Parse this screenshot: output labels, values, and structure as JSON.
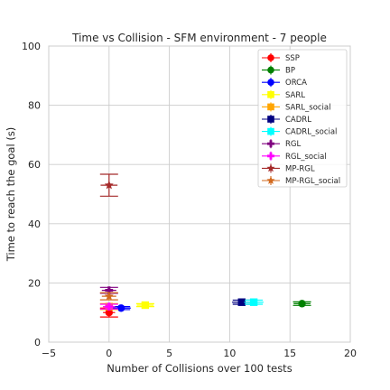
{
  "chart_data": {
    "type": "scatter",
    "title": "Time vs Collision - SFM environment - 7 people",
    "xlabel": "Number of Collisions over 100 tests",
    "ylabel": "Time to reach the goal (s)",
    "xlim": [
      -5,
      20
    ],
    "ylim": [
      0,
      100
    ],
    "xticks": [
      -5,
      0,
      5,
      10,
      15,
      20
    ],
    "yticks": [
      0,
      20,
      40,
      60,
      80,
      100
    ],
    "xtick_labels": [
      "−5",
      "0",
      "5",
      "10",
      "15",
      "20"
    ],
    "ytick_labels": [
      "0",
      "20",
      "40",
      "60",
      "80",
      "100"
    ],
    "grid": true,
    "legend_position": "top-right",
    "series": [
      {
        "name": "SSP",
        "marker": "circle",
        "color": "#ff0000",
        "x": 0,
        "y": 10,
        "xerr": 0.5,
        "yerr": 1.5
      },
      {
        "name": "BP",
        "marker": "circle",
        "color": "#008000",
        "x": 16,
        "y": 13,
        "xerr": 0.7,
        "yerr": 0.6
      },
      {
        "name": "ORCA",
        "marker": "circle",
        "color": "#0000ff",
        "x": 1,
        "y": 11.5,
        "xerr": 0.8,
        "yerr": 0.5
      },
      {
        "name": "SARL",
        "marker": "square",
        "color": "#ffff00",
        "x": 3,
        "y": 12.5,
        "xerr": 0.7,
        "yerr": 0.5
      },
      {
        "name": "SARL_social",
        "marker": "square",
        "color": "#ffa500",
        "x": 0,
        "y": 12,
        "xerr": 0.5,
        "yerr": 1.0
      },
      {
        "name": "CADRL",
        "marker": "square",
        "color": "#000080",
        "x": 11,
        "y": 13.5,
        "xerr": 0.8,
        "yerr": 0.7
      },
      {
        "name": "CADRL_social",
        "marker": "square",
        "color": "#00ffff",
        "x": 12,
        "y": 13.5,
        "xerr": 0.8,
        "yerr": 0.7
      },
      {
        "name": "RGL",
        "marker": "plus",
        "color": "#800080",
        "x": 0,
        "y": 17.5,
        "xerr": 0.6,
        "yerr": 1.0
      },
      {
        "name": "RGL_social",
        "marker": "plus",
        "color": "#ff00ff",
        "x": 0,
        "y": 12,
        "xerr": 0.5,
        "yerr": 0.8
      },
      {
        "name": "MP-RGL",
        "marker": "star",
        "color": "#a52a2a",
        "x": 0,
        "y": 53,
        "xerr": 0.7,
        "yerr": 3.7
      },
      {
        "name": "MP-RGL_social",
        "marker": "star",
        "color": "#d2691e",
        "x": 0,
        "y": 15.5,
        "xerr": 0.6,
        "yerr": 1.2
      }
    ]
  }
}
